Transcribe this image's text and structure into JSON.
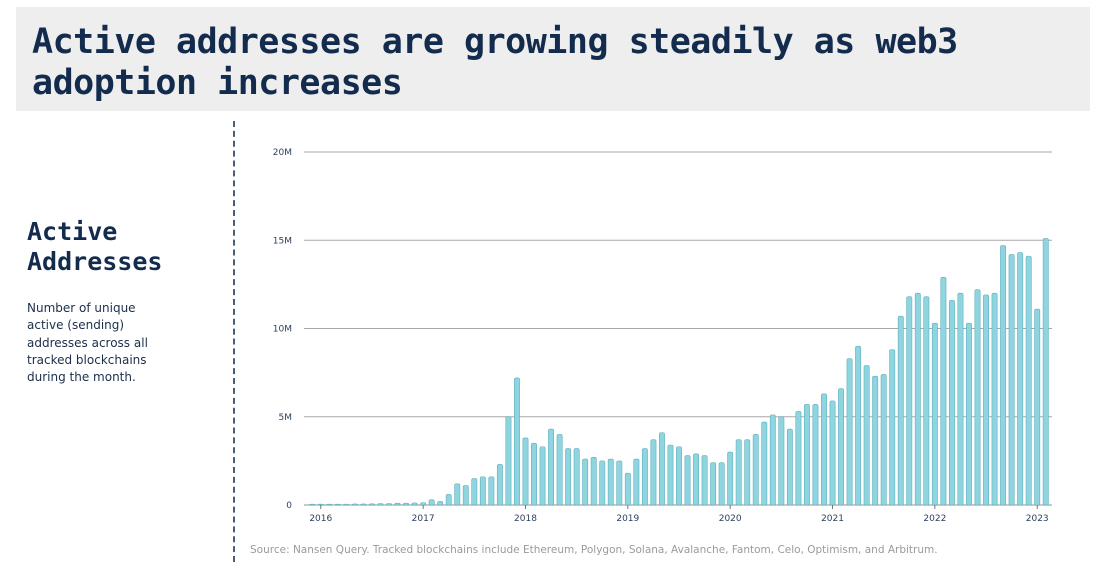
{
  "header": {
    "title": "Active addresses are growing steadily as web3 adoption increases"
  },
  "sidebar": {
    "title": "Active Addresses",
    "description": "Number of unique active (sending) addresses across all tracked blockchains during the month."
  },
  "source": "Source: Nansen Query. Tracked blockchains include Ethereum, Polygon, Solana, Avalanche, Fantom, Celo, Optimism, and Arbitrum.",
  "colors": {
    "bar_fill": "#8fd5df",
    "bar_stroke": "#5fb0be",
    "grid": "#a8a8a8",
    "title_text": "#132c4d",
    "header_bg": "#eeeeee"
  },
  "chart_data": {
    "type": "bar",
    "title": "",
    "xlabel": "",
    "ylabel": "",
    "ylim": [
      0,
      20000000
    ],
    "grid": true,
    "y_ticks": [
      {
        "value": 0,
        "label": "0"
      },
      {
        "value": 5000000,
        "label": "5M"
      },
      {
        "value": 10000000,
        "label": "10M"
      },
      {
        "value": 15000000,
        "label": "15M"
      },
      {
        "value": 20000000,
        "label": "20M"
      }
    ],
    "x_ticks": [
      {
        "index": 1,
        "label": "2016"
      },
      {
        "index": 13,
        "label": "2017"
      },
      {
        "index": 25,
        "label": "2018"
      },
      {
        "index": 37,
        "label": "2019"
      },
      {
        "index": 49,
        "label": "2020"
      },
      {
        "index": 61,
        "label": "2021"
      },
      {
        "index": 73,
        "label": "2022"
      },
      {
        "index": 85,
        "label": "2023"
      }
    ],
    "series": [
      {
        "values": [
          0.02,
          0.02,
          0.03,
          0.04,
          0.05,
          0.06,
          0.06,
          0.07,
          0.08,
          0.08,
          0.1,
          0.1,
          0.12,
          0.13,
          0.3,
          0.2,
          0.6,
          1.2,
          1.1,
          1.5,
          1.6,
          1.6,
          2.3,
          5.0,
          7.2,
          3.8,
          3.5,
          3.3,
          4.3,
          4.0,
          3.2,
          3.2,
          2.6,
          2.7,
          2.5,
          2.6,
          2.5,
          1.8,
          2.6,
          3.2,
          3.7,
          4.1,
          3.4,
          3.3,
          2.8,
          2.9,
          2.8,
          2.4,
          2.4,
          3.0,
          3.7,
          3.7,
          4.0,
          4.7,
          5.1,
          5.0,
          4.3,
          5.3,
          5.7,
          5.7,
          6.3,
          5.9,
          6.6,
          8.3,
          9.0,
          7.9,
          7.3,
          7.4,
          8.8,
          10.7,
          11.8,
          12.0,
          11.8,
          10.3,
          12.9,
          11.6,
          12.0,
          10.3,
          12.2,
          11.9,
          12.0,
          14.7,
          14.2,
          14.3,
          14.1,
          11.1,
          15.1
        ],
        "unit": "millions"
      }
    ]
  }
}
